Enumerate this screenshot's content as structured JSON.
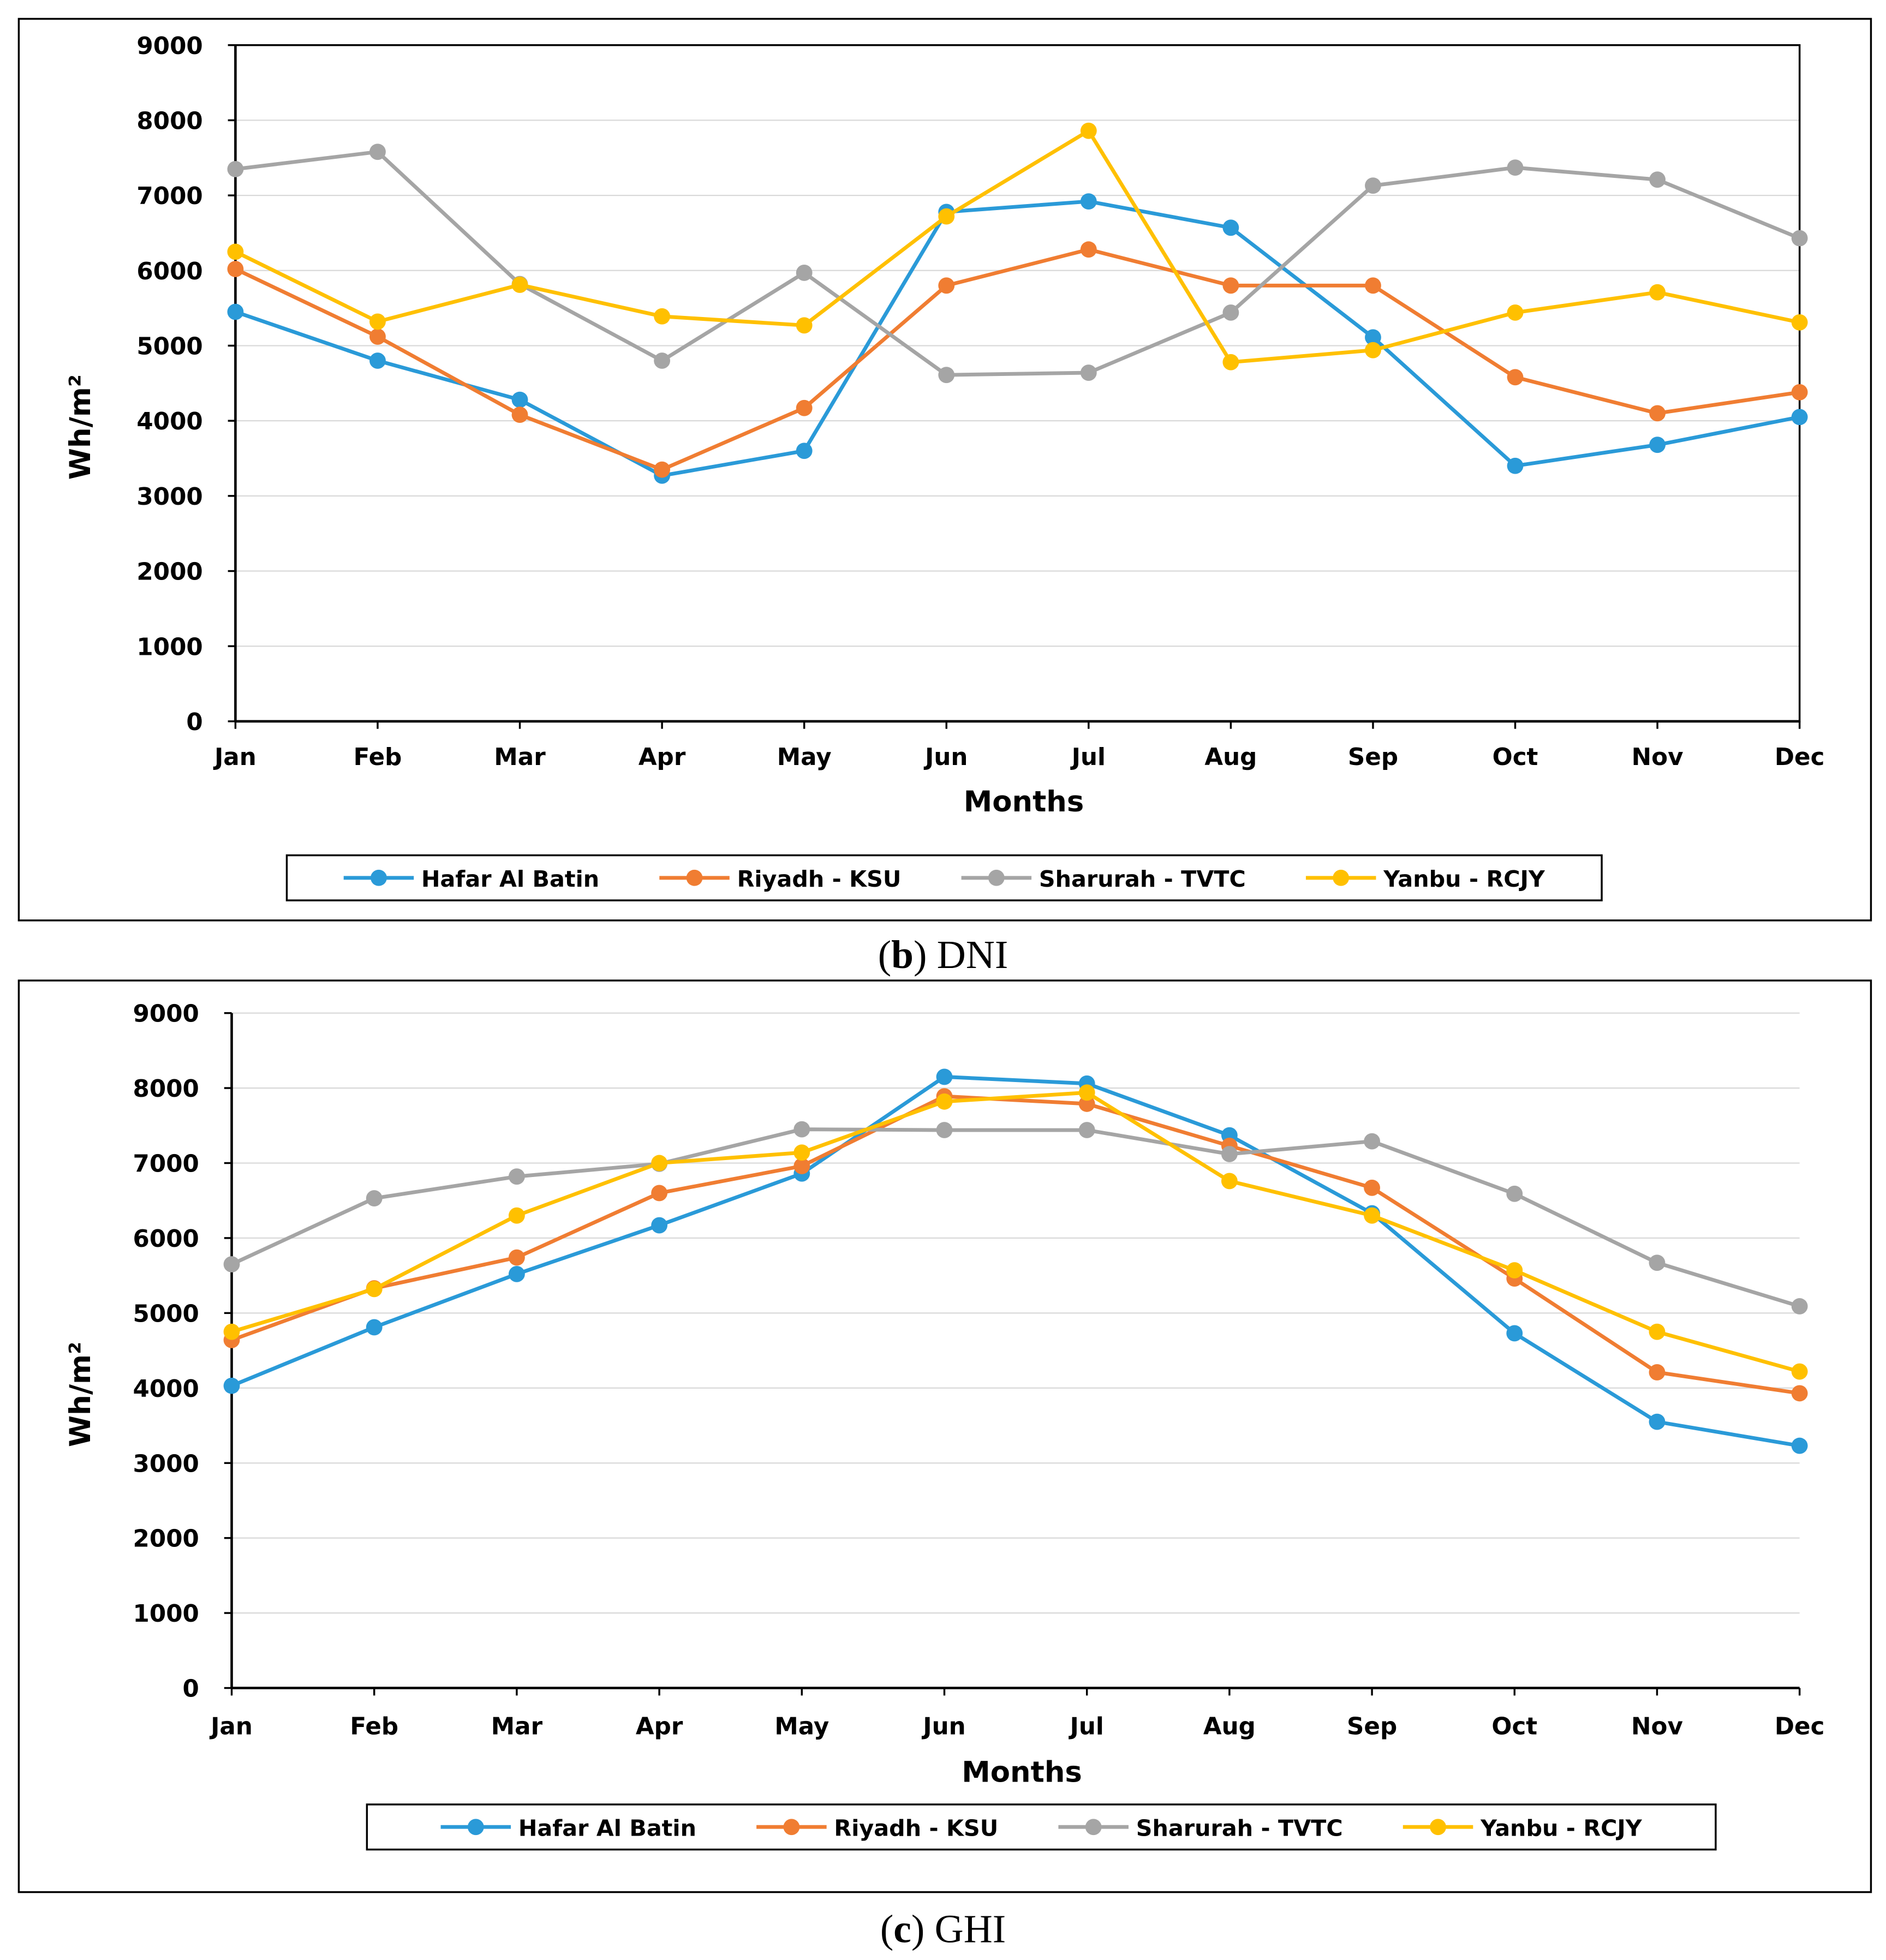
{
  "chart_data": [
    {
      "type": "line",
      "caption": [
        "(",
        "b",
        ") DNI"
      ],
      "x_label": "Months",
      "y_label": "Wh/m²",
      "categories": [
        "Jan",
        "Feb",
        "Mar",
        "Apr",
        "May",
        "Jun",
        "Jul",
        "Aug",
        "Sep",
        "Oct",
        "Nov",
        "Dec"
      ],
      "ylim": [
        0,
        9000
      ],
      "yticks": [
        0,
        1000,
        2000,
        3000,
        4000,
        5000,
        6000,
        7000,
        8000,
        9000
      ],
      "grid": true,
      "plot_frame": true,
      "legend": "bottom",
      "series": [
        {
          "name": "Hafar Al Batin",
          "color": "#2a9ad8",
          "values": [
            5450,
            4800,
            4280,
            3270,
            3600,
            6780,
            6920,
            6570,
            5110,
            3400,
            3680,
            4050
          ]
        },
        {
          "name": "Riyadh - KSU",
          "color": "#f07d32",
          "values": [
            6020,
            5120,
            4080,
            3350,
            4170,
            5800,
            6280,
            5800,
            5800,
            4580,
            4100,
            4380
          ]
        },
        {
          "name": "Sharurah - TVTC",
          "color": "#a5a5a5",
          "values": [
            7350,
            7580,
            5820,
            4800,
            5970,
            4610,
            4640,
            5440,
            7130,
            7370,
            7210,
            6430
          ]
        },
        {
          "name": "Yanbu - RCJY",
          "color": "#ffc000",
          "values": [
            6250,
            5320,
            5810,
            5390,
            5270,
            6720,
            7860,
            4780,
            4940,
            5440,
            5710,
            5310
          ]
        }
      ]
    },
    {
      "type": "line",
      "caption": [
        "(",
        "c",
        ") GHI"
      ],
      "x_label": "Months",
      "y_label": "Wh/m²",
      "categories": [
        "Jan",
        "Feb",
        "Mar",
        "Apr",
        "May",
        "Jun",
        "Jul",
        "Aug",
        "Sep",
        "Oct",
        "Nov",
        "Dec"
      ],
      "ylim": [
        0,
        9000
      ],
      "yticks": [
        0,
        1000,
        2000,
        3000,
        4000,
        5000,
        6000,
        7000,
        8000,
        9000
      ],
      "grid": true,
      "plot_frame": false,
      "legend": "bottom",
      "series": [
        {
          "name": "Hafar Al Batin",
          "color": "#2a9ad8",
          "values": [
            4030,
            4810,
            5520,
            6170,
            6860,
            8150,
            8060,
            7370,
            6330,
            4730,
            3550,
            3230
          ]
        },
        {
          "name": "Riyadh - KSU",
          "color": "#f07d32",
          "values": [
            4640,
            5330,
            5740,
            6600,
            6960,
            7890,
            7790,
            7230,
            6670,
            5460,
            4210,
            3930
          ]
        },
        {
          "name": "Sharurah - TVTC",
          "color": "#a5a5a5",
          "values": [
            5650,
            6530,
            6820,
            6990,
            7450,
            7440,
            7440,
            7120,
            7290,
            6590,
            5670,
            5090
          ]
        },
        {
          "name": "Yanbu - RCJY",
          "color": "#ffc000",
          "values": [
            4750,
            5320,
            6300,
            7000,
            7140,
            7820,
            7940,
            6760,
            6300,
            5570,
            4750,
            4220
          ]
        }
      ]
    }
  ]
}
